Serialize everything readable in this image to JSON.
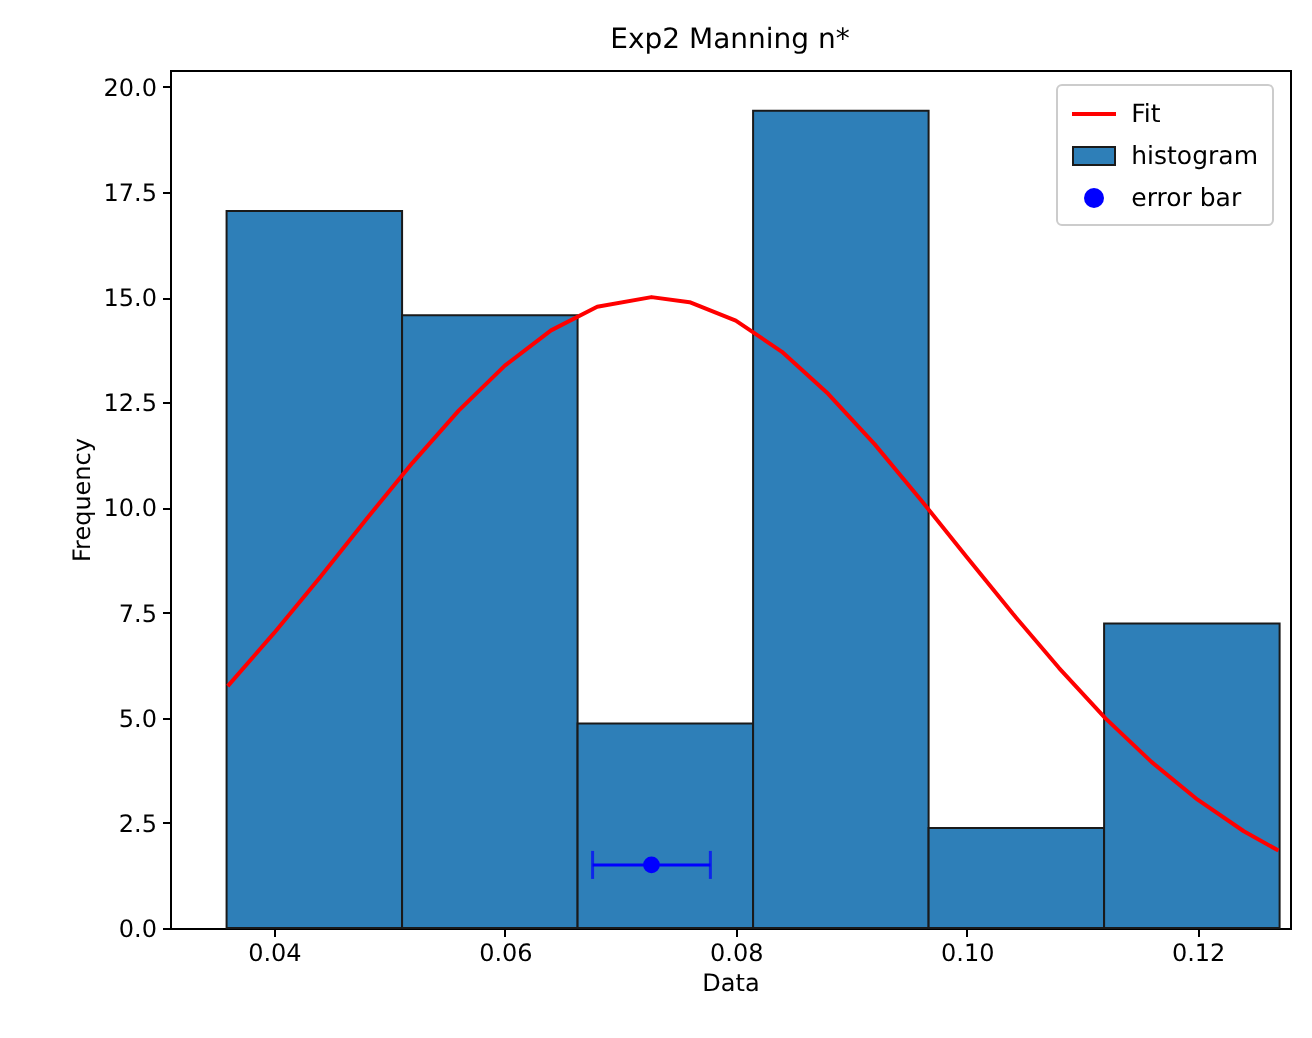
{
  "chart_data": {
    "type": "histogram",
    "title": "Exp2 Manning n*",
    "xlabel": "Data",
    "ylabel": "Frequency",
    "xlim": [
      0.031,
      0.128
    ],
    "ylim": [
      0,
      20.4
    ],
    "xticks": [
      0.04,
      0.06,
      0.08,
      {
        "value": 0.1,
        "label": "0.10"
      },
      0.12
    ],
    "yticks": [
      {
        "value": 0,
        "label": "0.0"
      },
      2.5,
      {
        "value": 5,
        "label": "5.0"
      },
      7.5,
      {
        "value": 10,
        "label": "10.0"
      },
      12.5,
      {
        "value": 15,
        "label": "15.0"
      },
      17.5,
      {
        "value": 20,
        "label": "20.0"
      }
    ],
    "grid": false,
    "legend": "top right",
    "series": [
      {
        "name": "Fit",
        "type": "line",
        "color": "#ff0000",
        "x": [
          0.036,
          0.04,
          0.044,
          0.048,
          0.052,
          0.056,
          0.06,
          0.064,
          0.068,
          0.0727,
          0.076,
          0.08,
          0.084,
          0.088,
          0.092,
          0.096,
          0.1,
          0.104,
          0.108,
          0.112,
          0.116,
          0.12,
          0.124,
          0.127
        ],
        "values": [
          5.75,
          7.01,
          8.34,
          9.72,
          11.06,
          12.3,
          13.37,
          14.21,
          14.77,
          15,
          14.88,
          14.44,
          13.7,
          12.7,
          11.51,
          10.19,
          8.82,
          7.47,
          6.18,
          4.99,
          3.95,
          3.05,
          2.3,
          1.84
        ]
      },
      {
        "name": "histogram",
        "type": "histogram",
        "color": "#2e7fb8",
        "bins": [
          0.0359,
          0.0511,
          0.0663,
          0.0815,
          0.0967,
          0.1119,
          0.1271
        ],
        "values": [
          17.05,
          14.57,
          4.86,
          19.43,
          2.38,
          7.24
        ]
      },
      {
        "name": "error bar",
        "type": "scatter",
        "marker": "circle",
        "color": "#0000ff",
        "x": [
          0.0727
        ],
        "values": [
          1.5
        ],
        "xerrors": [
          0.0051
        ]
      }
    ]
  }
}
